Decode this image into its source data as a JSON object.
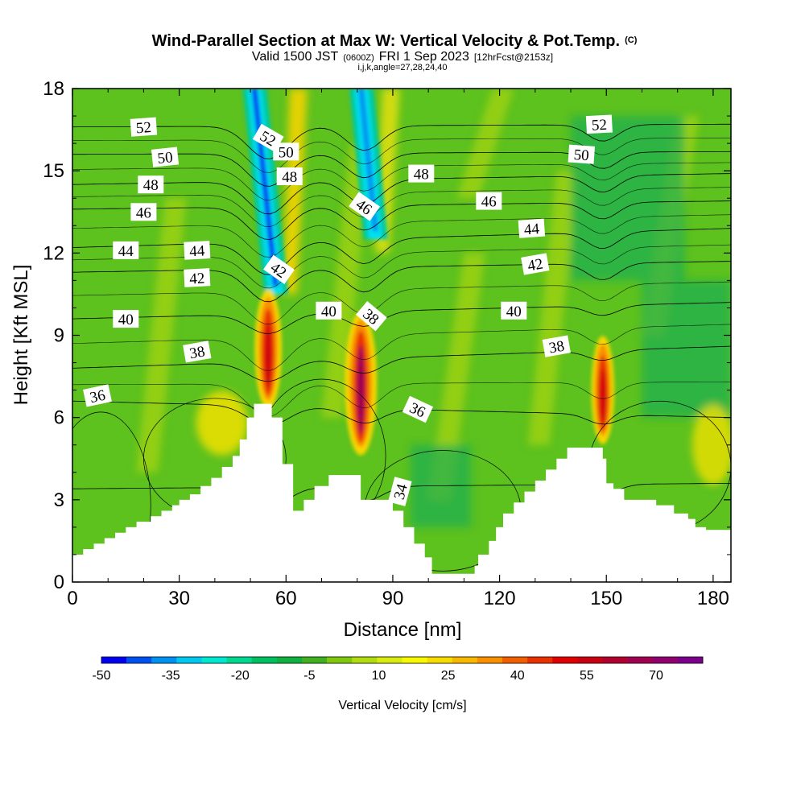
{
  "chart_data": {
    "type": "heatmap",
    "title": "Wind-Parallel Section at Max W: Vertical Velocity & Pot.Temp.",
    "title_mark": "(C)",
    "subtitle_parts": [
      "Valid 1500 JST",
      "(0600Z)",
      "FRI 1 Sep 2023",
      "[12hrFcst@2153z]"
    ],
    "subtitle2": "i,j,k,angle=27,28,24,40",
    "xlabel": "Distance [nm]",
    "ylabel": "Height [Kft MSL]",
    "xlim": [
      0,
      185
    ],
    "ylim": [
      0,
      18
    ],
    "x_ticks": [
      "0",
      "30",
      "60",
      "90",
      "120",
      "150",
      "180"
    ],
    "y_ticks": [
      "0",
      "3",
      "6",
      "9",
      "12",
      "15",
      "18"
    ],
    "colorbar": {
      "label": "Vertical Velocity [cm/s]",
      "tick_labels": [
        "-50",
        "-35",
        "-20",
        "-5",
        "10",
        "25",
        "40",
        "55",
        "70"
      ],
      "colors": [
        "#0000f0",
        "#0050f0",
        "#0090f0",
        "#00c8f0",
        "#00e8d0",
        "#00d890",
        "#00c060",
        "#10b040",
        "#40b020",
        "#80c810",
        "#b0dc10",
        "#d8ec10",
        "#f8f800",
        "#f8dc00",
        "#f8b800",
        "#f89000",
        "#f06000",
        "#e83000",
        "#e00000",
        "#c80010",
        "#b00030",
        "#a00050",
        "#900070",
        "#7a008a"
      ]
    },
    "potential_temperature_contour_labels": [
      "52",
      "50",
      "48",
      "46",
      "44",
      "42",
      "40",
      "38",
      "36",
      "34"
    ],
    "terrain_kft": [
      [
        0,
        1.0
      ],
      [
        2,
        1.0
      ],
      [
        3,
        1.2
      ],
      [
        6,
        1.4
      ],
      [
        9,
        1.6
      ],
      [
        12,
        1.8
      ],
      [
        15,
        2.0
      ],
      [
        18,
        2.2
      ],
      [
        22,
        2.4
      ],
      [
        25,
        2.6
      ],
      [
        28,
        2.8
      ],
      [
        30,
        3.0
      ],
      [
        33,
        3.2
      ],
      [
        36,
        3.5
      ],
      [
        39,
        3.8
      ],
      [
        42,
        4.2
      ],
      [
        45,
        4.6
      ],
      [
        47,
        5.2
      ],
      [
        49,
        6.0
      ],
      [
        51,
        6.5
      ],
      [
        55,
        6.5
      ],
      [
        56,
        6.0
      ],
      [
        59,
        4.3
      ],
      [
        62,
        2.6
      ],
      [
        65,
        3.0
      ],
      [
        68,
        3.5
      ],
      [
        72,
        3.9
      ],
      [
        79,
        3.9
      ],
      [
        81,
        3.0
      ],
      [
        88,
        3.0
      ],
      [
        90,
        2.6
      ],
      [
        93,
        2.0
      ],
      [
        96,
        1.4
      ],
      [
        99,
        0.9
      ],
      [
        101,
        0.3
      ],
      [
        112,
        0.3
      ],
      [
        113,
        0.6
      ],
      [
        114,
        1.0
      ],
      [
        117,
        1.5
      ],
      [
        119,
        2.0
      ],
      [
        121,
        2.5
      ],
      [
        124,
        2.9
      ],
      [
        127,
        3.3
      ],
      [
        130,
        3.7
      ],
      [
        133,
        4.1
      ],
      [
        136,
        4.5
      ],
      [
        139,
        4.9
      ],
      [
        147,
        4.9
      ],
      [
        149,
        4.5
      ],
      [
        150,
        3.6
      ],
      [
        152,
        3.4
      ],
      [
        155,
        3.0
      ],
      [
        158,
        3.0
      ],
      [
        164,
        2.8
      ],
      [
        169,
        2.5
      ],
      [
        173,
        2.3
      ],
      [
        175,
        2.0
      ],
      [
        178,
        1.9
      ],
      [
        180,
        1.9
      ],
      [
        185,
        1.9
      ]
    ],
    "updraft_cores": [
      {
        "x": 55,
        "ybot": 6.5,
        "ytop": 10.5,
        "max_cms": 60
      },
      {
        "x": 81,
        "ybot": 4.8,
        "ytop": 9.7,
        "max_cms": 75
      },
      {
        "x": 149,
        "ybot": 5.2,
        "ytop": 8.8,
        "max_cms": 48
      }
    ],
    "downdraft_bands": [
      {
        "x_bottom": 57,
        "y_bottom": 10.5,
        "x_top": 51,
        "y_top": 18,
        "min_cms": -45
      },
      {
        "x_bottom": 85,
        "y_bottom": 12.5,
        "x_top": 81,
        "y_top": 18,
        "min_cms": -32
      }
    ],
    "theta_contours": [
      {
        "value": "52",
        "y_left": 16.6,
        "y_right": 16.7
      },
      {
        "value": "50",
        "y_left": 15.6,
        "y_right": 15.7
      },
      {
        "value": "48",
        "y_left": 14.5,
        "y_right": 14.9
      },
      {
        "value": "46",
        "y_left": 13.6,
        "y_right": 13.9
      },
      {
        "value": "44",
        "y_left": 12.2,
        "y_right": 12.9
      },
      {
        "value": "42",
        "y_left": 11.3,
        "y_right": 11.7
      },
      {
        "value": "40",
        "y_left": 9.6,
        "y_right": 10.2
      },
      {
        "value": "38",
        "y_left": 7.8,
        "y_right": 8.6
      },
      {
        "value": "36",
        "y_left": 6.6,
        "y_right": 6.0
      },
      {
        "value": "34",
        "y_left": 3.4,
        "y_right": 3.6
      }
    ]
  }
}
